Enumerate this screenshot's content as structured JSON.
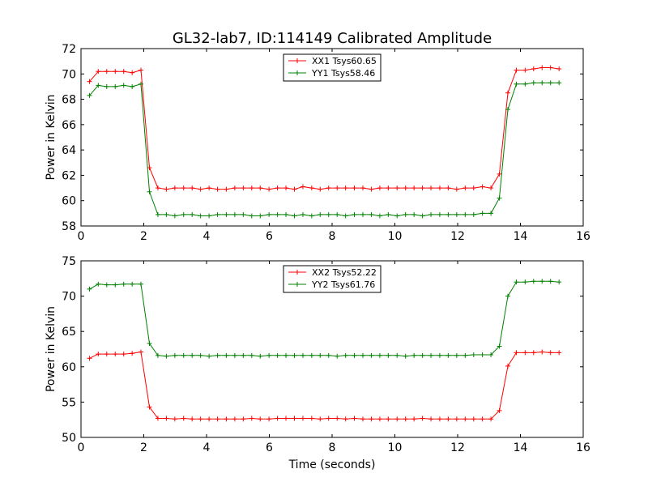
{
  "title": "GL32-lab7, ID:114149 Calibrated Amplitude",
  "chart_data": [
    {
      "type": "line",
      "title": "GL32-lab7, ID:114149 Calibrated Amplitude",
      "xlabel": "",
      "ylabel": "Power in Kelvin",
      "xlim": [
        0,
        16
      ],
      "ylim": [
        58,
        72
      ],
      "xticks": [
        "0",
        "2",
        "4",
        "6",
        "8",
        "10",
        "12",
        "14",
        "16"
      ],
      "yticks": [
        "58",
        "60",
        "62",
        "64",
        "66",
        "68",
        "70",
        "72"
      ],
      "legend_position": "top-center",
      "x": [
        0.27,
        0.55,
        0.82,
        1.09,
        1.36,
        1.63,
        1.91,
        2.18,
        2.45,
        2.72,
        2.99,
        3.27,
        3.54,
        3.81,
        4.08,
        4.35,
        4.63,
        4.9,
        5.17,
        5.44,
        5.71,
        5.99,
        6.26,
        6.53,
        6.8,
        7.07,
        7.35,
        7.62,
        7.89,
        8.16,
        8.43,
        8.71,
        8.98,
        9.25,
        9.52,
        9.79,
        10.07,
        10.34,
        10.61,
        10.88,
        11.15,
        11.43,
        11.7,
        11.97,
        12.24,
        12.51,
        12.79,
        13.06,
        13.33,
        13.6,
        13.87,
        14.15,
        14.42,
        14.69,
        14.96,
        15.23
      ],
      "series": [
        {
          "name": "XX1 Tsys60.65",
          "color": "#ff0000",
          "values": [
            69.4,
            70.2,
            70.2,
            70.2,
            70.2,
            70.1,
            70.3,
            62.6,
            61.0,
            60.9,
            61.0,
            61.0,
            61.0,
            60.9,
            61.0,
            60.9,
            60.9,
            61.0,
            61.0,
            61.0,
            61.0,
            60.9,
            61.0,
            61.0,
            60.9,
            61.1,
            61.0,
            60.9,
            61.0,
            61.0,
            61.0,
            61.0,
            61.0,
            60.9,
            61.0,
            61.0,
            61.0,
            61.0,
            61.0,
            61.0,
            61.0,
            61.0,
            61.0,
            60.9,
            61.0,
            61.0,
            61.1,
            61.0,
            62.1,
            68.5,
            70.3,
            70.3,
            70.4,
            70.5,
            70.5,
            70.4
          ]
        },
        {
          "name": "YY1 Tsys58.46",
          "color": "#008000",
          "values": [
            68.3,
            69.1,
            69.0,
            69.0,
            69.1,
            69.0,
            69.2,
            60.7,
            58.9,
            58.9,
            58.8,
            58.9,
            58.9,
            58.8,
            58.8,
            58.9,
            58.9,
            58.9,
            58.9,
            58.8,
            58.8,
            58.9,
            58.9,
            58.9,
            58.8,
            58.9,
            58.8,
            58.9,
            58.9,
            58.9,
            58.8,
            58.9,
            58.9,
            58.9,
            58.8,
            58.9,
            58.8,
            58.9,
            58.9,
            58.8,
            58.9,
            58.9,
            58.9,
            58.9,
            58.9,
            58.9,
            59.0,
            59.0,
            60.2,
            67.2,
            69.2,
            69.2,
            69.3,
            69.3,
            69.3,
            69.3
          ]
        }
      ]
    },
    {
      "type": "line",
      "title": "",
      "xlabel": "Time (seconds)",
      "ylabel": "Power in Kelvin",
      "xlim": [
        0,
        16
      ],
      "ylim": [
        50,
        75
      ],
      "xticks": [
        "0",
        "2",
        "4",
        "6",
        "8",
        "10",
        "12",
        "14",
        "16"
      ],
      "yticks": [
        "50",
        "55",
        "60",
        "65",
        "70",
        "75"
      ],
      "legend_position": "top-center",
      "x": [
        0.27,
        0.55,
        0.82,
        1.09,
        1.36,
        1.63,
        1.91,
        2.18,
        2.45,
        2.72,
        2.99,
        3.27,
        3.54,
        3.81,
        4.08,
        4.35,
        4.63,
        4.9,
        5.17,
        5.44,
        5.71,
        5.99,
        6.26,
        6.53,
        6.8,
        7.07,
        7.35,
        7.62,
        7.89,
        8.16,
        8.43,
        8.71,
        8.98,
        9.25,
        9.52,
        9.79,
        10.07,
        10.34,
        10.61,
        10.88,
        11.15,
        11.43,
        11.7,
        11.97,
        12.24,
        12.51,
        12.79,
        13.06,
        13.33,
        13.6,
        13.87,
        14.15,
        14.42,
        14.69,
        14.96,
        15.23
      ],
      "series": [
        {
          "name": "XX2 Tsys52.22",
          "color": "#ff0000",
          "values": [
            61.2,
            61.8,
            61.8,
            61.8,
            61.8,
            61.9,
            62.1,
            54.3,
            52.7,
            52.7,
            52.6,
            52.7,
            52.6,
            52.6,
            52.6,
            52.6,
            52.6,
            52.6,
            52.6,
            52.7,
            52.6,
            52.6,
            52.7,
            52.7,
            52.7,
            52.7,
            52.7,
            52.6,
            52.7,
            52.7,
            52.6,
            52.7,
            52.6,
            52.6,
            52.6,
            52.6,
            52.6,
            52.6,
            52.6,
            52.7,
            52.6,
            52.6,
            52.6,
            52.6,
            52.6,
            52.6,
            52.6,
            52.6,
            53.8,
            60.1,
            62.0,
            62.0,
            62.0,
            62.1,
            62.0,
            62.0
          ]
        },
        {
          "name": "YY2 Tsys61.76",
          "color": "#008000",
          "values": [
            71.0,
            71.7,
            71.6,
            71.6,
            71.7,
            71.7,
            71.7,
            63.3,
            61.6,
            61.5,
            61.6,
            61.6,
            61.6,
            61.6,
            61.5,
            61.6,
            61.6,
            61.6,
            61.6,
            61.6,
            61.5,
            61.6,
            61.6,
            61.6,
            61.6,
            61.6,
            61.6,
            61.6,
            61.6,
            61.5,
            61.6,
            61.6,
            61.6,
            61.6,
            61.6,
            61.6,
            61.6,
            61.5,
            61.6,
            61.6,
            61.6,
            61.6,
            61.6,
            61.6,
            61.6,
            61.7,
            61.7,
            61.7,
            62.9,
            70.0,
            72.0,
            72.0,
            72.1,
            72.1,
            72.1,
            72.0
          ]
        }
      ]
    }
  ]
}
